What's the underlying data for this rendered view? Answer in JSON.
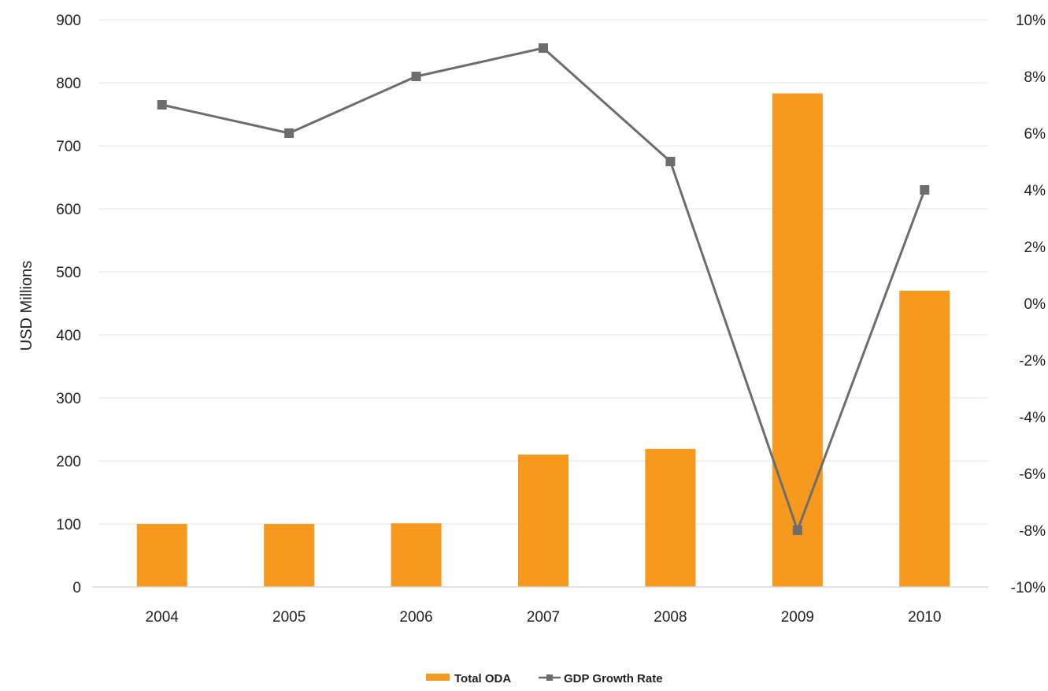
{
  "chart_data": {
    "type": "bar",
    "categories": [
      "2004",
      "2005",
      "2006",
      "2007",
      "2008",
      "2009",
      "2010"
    ],
    "series": [
      {
        "name": "Total ODA",
        "type": "bar",
        "axis": "left",
        "values": [
          100,
          100,
          101,
          210,
          219,
          783,
          470
        ]
      },
      {
        "name": "GDP Growth Rate",
        "type": "line",
        "axis": "right",
        "values": [
          0.07,
          0.06,
          0.08,
          0.09,
          0.05,
          -0.08,
          0.04
        ]
      }
    ],
    "ylabel": "USD Millions",
    "ylim": [
      0,
      900
    ],
    "y_ticks": [
      0,
      100,
      200,
      300,
      400,
      500,
      600,
      700,
      800,
      900
    ],
    "y_tick_labels": [
      "0",
      "100",
      "200",
      "300",
      "400",
      "500",
      "600",
      "700",
      "800",
      "900"
    ],
    "y2lim": [
      -0.1,
      0.1
    ],
    "y2_ticks": [
      -0.1,
      -0.08,
      -0.06,
      -0.04,
      -0.02,
      0,
      0.02,
      0.04,
      0.06,
      0.08,
      0.1
    ],
    "y2_tick_labels": [
      "-10%",
      "-8%",
      "-6%",
      "-4%",
      "-2%",
      "0%",
      "2%",
      "4%",
      "6%",
      "8%",
      "10%"
    ],
    "grid": true,
    "legend_position": "bottom",
    "legend": [
      "Total ODA",
      "GDP Growth Rate"
    ],
    "colors": {
      "bar": "#F7991C",
      "line": "#6D6D6D",
      "grid": "#EEEEEE"
    }
  }
}
